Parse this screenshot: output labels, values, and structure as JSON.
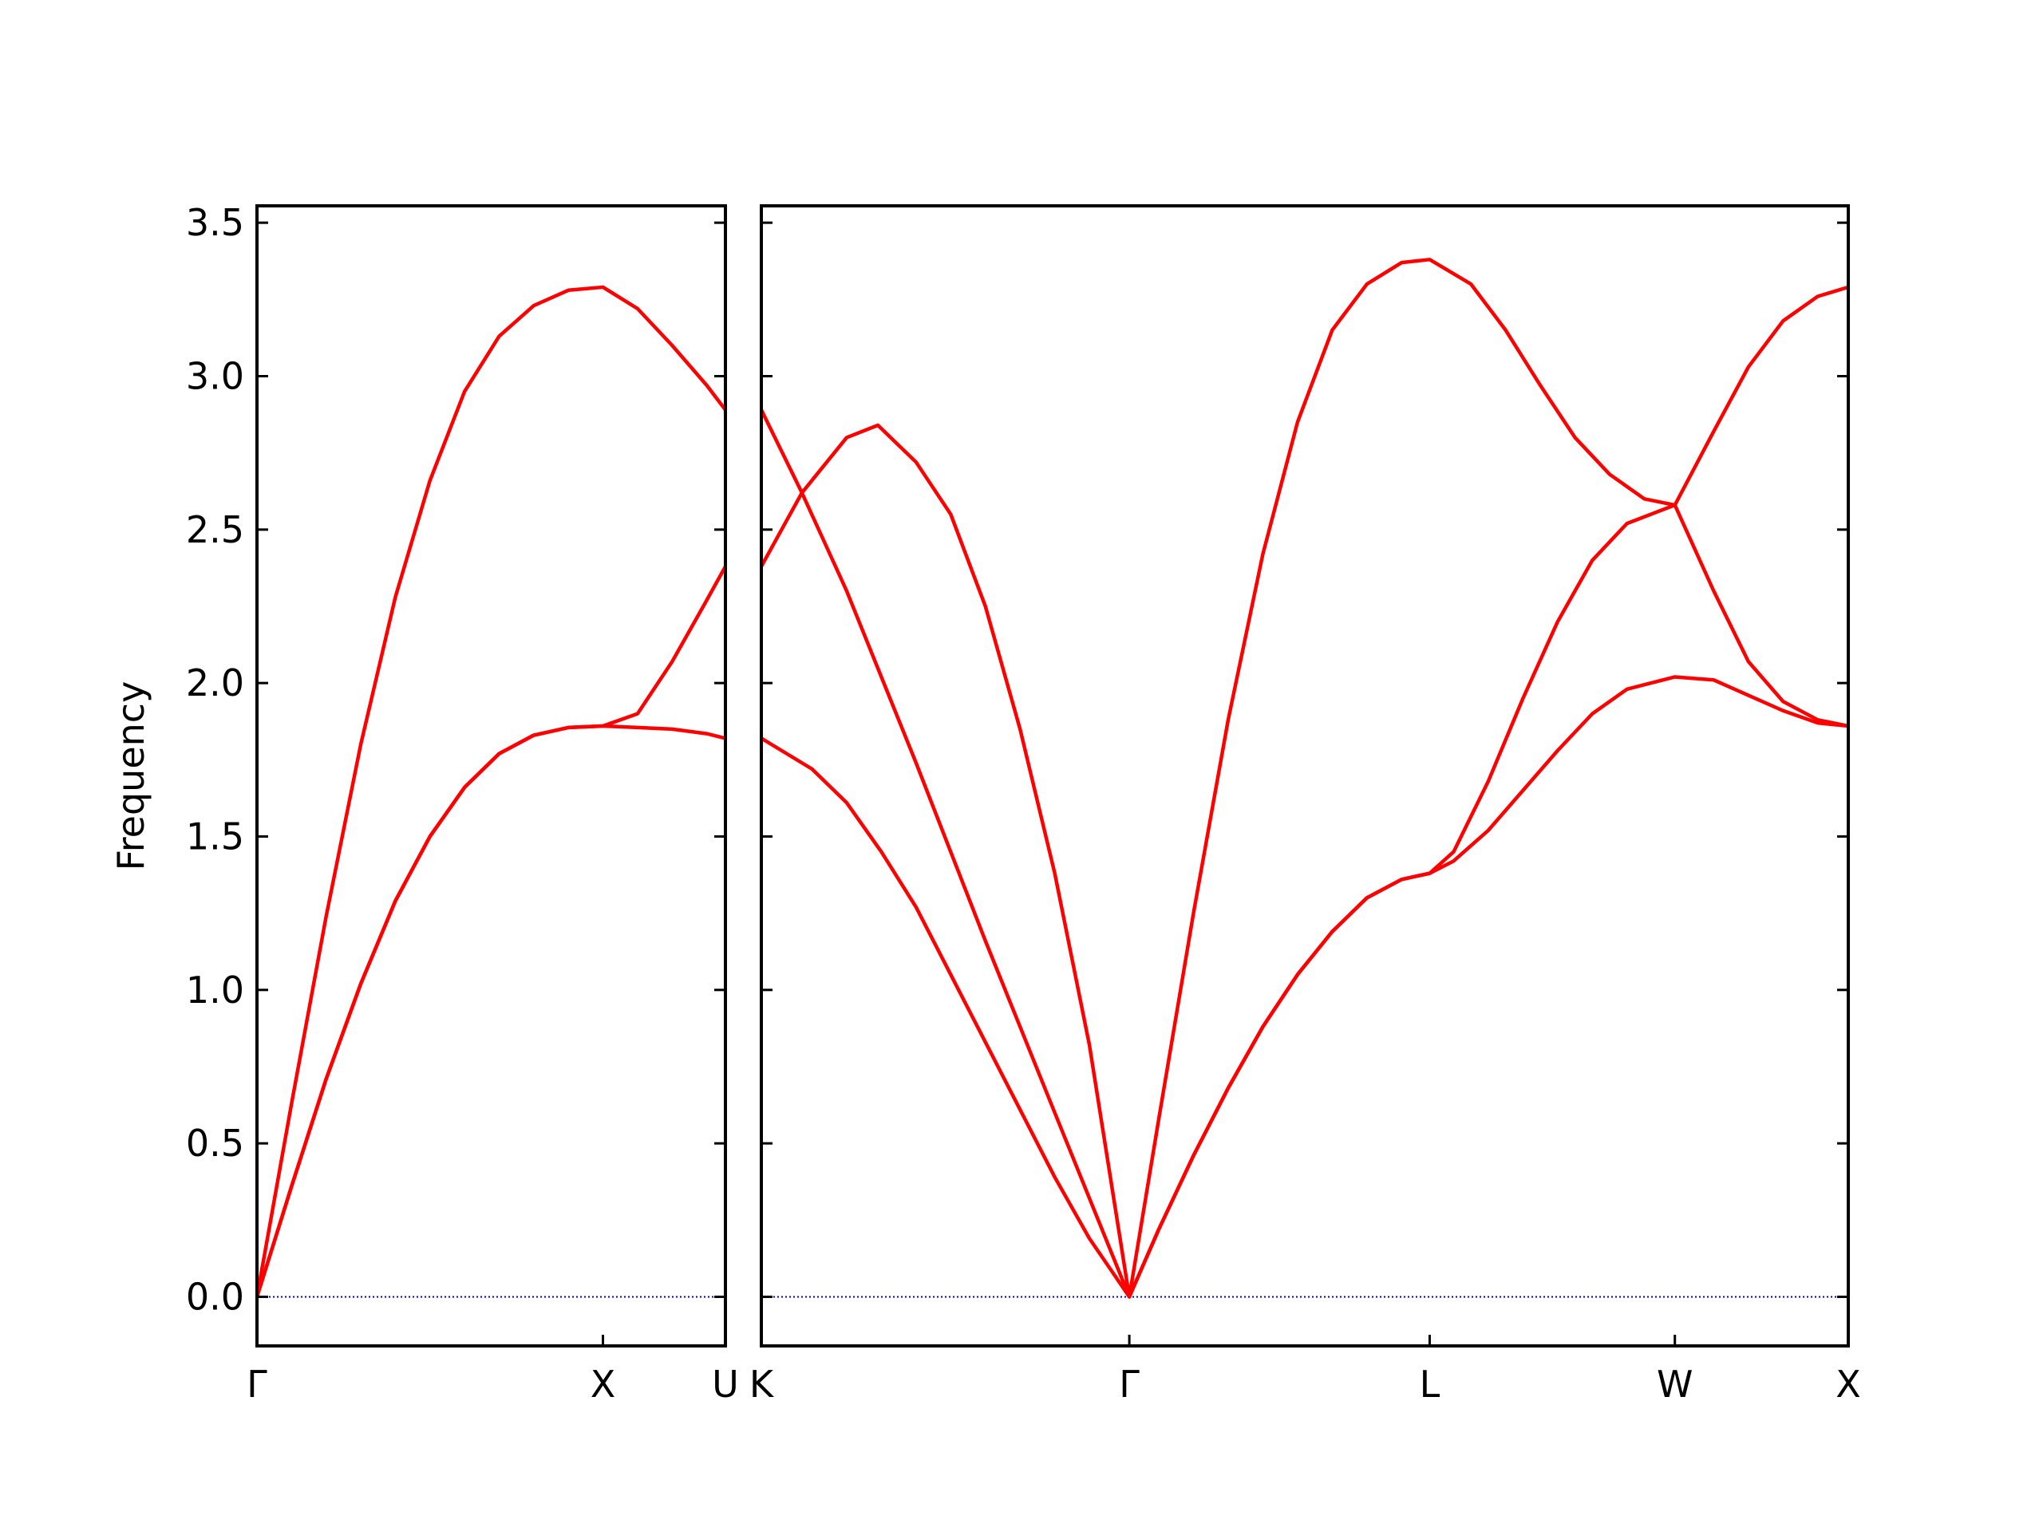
{
  "chart_data": [
    {
      "type": "line",
      "ylabel": "Frequency",
      "xlim": [
        0,
        1.354
      ],
      "ylim": [
        -0.16,
        3.555
      ],
      "xticks": [
        {
          "value": 0,
          "label": "Γ"
        },
        {
          "value": 1,
          "label": "X"
        },
        {
          "value": 1.354,
          "label": "U"
        }
      ],
      "yticks": [
        {
          "value": 0,
          "label": "0.0"
        },
        {
          "value": 0.5,
          "label": "0.5"
        },
        {
          "value": 1,
          "label": "1.0"
        },
        {
          "value": 1.5,
          "label": "1.5"
        },
        {
          "value": 2,
          "label": "2.0"
        },
        {
          "value": 2.5,
          "label": "2.5"
        },
        {
          "value": 3,
          "label": "3.0"
        },
        {
          "value": 3.5,
          "label": "3.5"
        }
      ],
      "hline": {
        "value": 0,
        "color": "#0000cc"
      },
      "series": [
        {
          "color": "#ff0000",
          "x": [
            0,
            0.1,
            0.2,
            0.3,
            0.4,
            0.5,
            0.6,
            0.7,
            0.8,
            0.9,
            1,
            1.1,
            1.2,
            1.3,
            1.354
          ],
          "values": [
            0,
            0.63,
            1.24,
            1.8,
            2.28,
            2.66,
            2.95,
            3.13,
            3.23,
            3.28,
            3.29,
            3.22,
            3.1,
            2.97,
            2.89
          ]
        },
        {
          "color": "#ff0000",
          "x": [
            0,
            0.1,
            0.2,
            0.3,
            0.4,
            0.5,
            0.6,
            0.7,
            0.8,
            0.9,
            1,
            1.1,
            1.2,
            1.3,
            1.354
          ],
          "values": [
            0,
            0.36,
            0.71,
            1.02,
            1.29,
            1.5,
            1.66,
            1.77,
            1.83,
            1.855,
            1.86,
            1.9,
            2.07,
            2.27,
            2.38
          ]
        },
        {
          "color": "#ff0000",
          "x": [
            0,
            0.1,
            0.2,
            0.3,
            0.4,
            0.5,
            0.6,
            0.7,
            0.8,
            0.9,
            1,
            1.1,
            1.2,
            1.3,
            1.354
          ],
          "values": [
            0,
            0.36,
            0.71,
            1.02,
            1.29,
            1.5,
            1.66,
            1.77,
            1.83,
            1.855,
            1.86,
            1.855,
            1.85,
            1.835,
            1.82
          ]
        }
      ]
    },
    {
      "type": "line",
      "xlim": [
        1.354,
        4.488
      ],
      "ylim": [
        -0.16,
        3.555
      ],
      "xticks": [
        {
          "value": 1.354,
          "label": "K"
        },
        {
          "value": 2.415,
          "label": "Γ"
        },
        {
          "value": 3.281,
          "label": "L"
        },
        {
          "value": 3.988,
          "label": "W"
        },
        {
          "value": 4.488,
          "label": "X"
        }
      ],
      "yticks": [
        0,
        0.5,
        1,
        1.5,
        2,
        2.5,
        3,
        3.5
      ],
      "hline": {
        "value": 0,
        "color": "#0000cc"
      },
      "series": [
        {
          "color": "#ff0000",
          "x": [
            1.354,
            1.471,
            1.6,
            1.8,
            2.0,
            2.2,
            2.415,
            2.5,
            2.6,
            2.7,
            2.8,
            2.9,
            3.0,
            3.1,
            3.2,
            3.281,
            3.4,
            3.5,
            3.6,
            3.7,
            3.8,
            3.9,
            3.988,
            4.1,
            4.2,
            4.3,
            4.4,
            4.488
          ],
          "values": [
            2.89,
            2.62,
            2.3,
            1.74,
            1.16,
            0.6,
            0,
            0.58,
            1.25,
            1.88,
            2.42,
            2.85,
            3.15,
            3.3,
            3.37,
            3.38,
            3.3,
            3.15,
            2.97,
            2.8,
            2.68,
            2.6,
            2.58,
            2.82,
            3.03,
            3.18,
            3.26,
            3.29
          ]
        },
        {
          "color": "#ff0000",
          "x": [
            1.354,
            1.471,
            1.6,
            1.69,
            1.8,
            1.9,
            2.0,
            2.1,
            2.2,
            2.3,
            2.415,
            2.5,
            2.6,
            2.7,
            2.8,
            2.9,
            3.0,
            3.1,
            3.2,
            3.281,
            3.35,
            3.45,
            3.55,
            3.65,
            3.75,
            3.85,
            3.988,
            4.1,
            4.2,
            4.3,
            4.4,
            4.488
          ],
          "values": [
            2.38,
            2.62,
            2.8,
            2.84,
            2.72,
            2.55,
            2.25,
            1.85,
            1.38,
            0.82,
            0,
            0.22,
            0.46,
            0.68,
            0.88,
            1.05,
            1.19,
            1.3,
            1.36,
            1.38,
            1.45,
            1.68,
            1.95,
            2.2,
            2.4,
            2.52,
            2.58,
            2.3,
            2.07,
            1.94,
            1.88,
            1.86
          ]
        },
        {
          "color": "#ff0000",
          "x": [
            1.354,
            1.5,
            1.6,
            1.7,
            1.8,
            1.9,
            2.0,
            2.1,
            2.2,
            2.3,
            2.415,
            2.5,
            2.6,
            2.7,
            2.8,
            2.9,
            3.0,
            3.1,
            3.2,
            3.281,
            3.35,
            3.45,
            3.55,
            3.65,
            3.75,
            3.85,
            3.988,
            4.1,
            4.2,
            4.3,
            4.4,
            4.488
          ],
          "values": [
            1.82,
            1.72,
            1.61,
            1.45,
            1.27,
            1.05,
            0.83,
            0.61,
            0.39,
            0.19,
            0,
            0.22,
            0.46,
            0.68,
            0.88,
            1.05,
            1.19,
            1.3,
            1.36,
            1.38,
            1.42,
            1.52,
            1.65,
            1.78,
            1.9,
            1.98,
            2.02,
            2.01,
            1.96,
            1.91,
            1.87,
            1.86
          ]
        }
      ]
    }
  ]
}
